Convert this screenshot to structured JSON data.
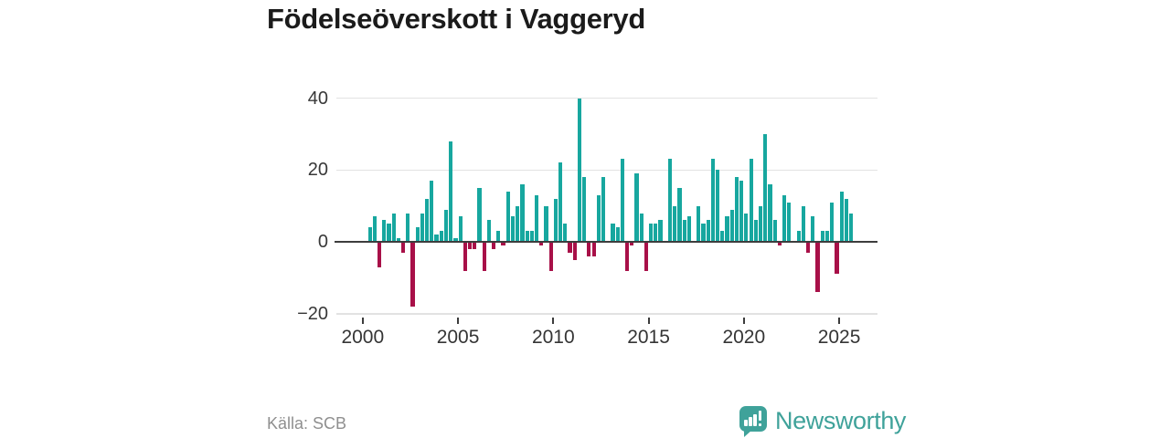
{
  "title": "Födelseöverskott i Vaggeryd",
  "source": "Källa: SCB",
  "brand": {
    "name": "Newsworthy"
  },
  "colors": {
    "positive": "#17a79f",
    "negative": "#a81048",
    "brand": "#3fa29a",
    "grid": "#e2e2e2",
    "zero_line": "#3d3d3d"
  },
  "chart_data": {
    "type": "bar",
    "title": "Födelseöverskott i Vaggeryd",
    "frequency": "quarterly",
    "start": "2000 Q1",
    "end": "2025 Q3",
    "ylim": [
      -20,
      40
    ],
    "grid": true,
    "y_ticks": [
      40,
      20,
      0,
      -20
    ],
    "y_tick_labels": [
      "40",
      "20",
      "0",
      "−20"
    ],
    "x_tick_years": [
      2000,
      2005,
      2010,
      2015,
      2020,
      2025
    ],
    "x_tick_labels": [
      "2000",
      "2005",
      "2010",
      "2015",
      "2020",
      "2025"
    ],
    "series": [
      {
        "name": "Födelseöverskott",
        "values": [
          0,
          4,
          7,
          -7,
          6,
          5,
          8,
          1,
          -3,
          8,
          -18,
          4,
          8,
          12,
          17,
          2,
          3,
          9,
          28,
          1,
          7,
          -8,
          -2,
          -2,
          15,
          -8,
          6,
          -2,
          3,
          -1,
          14,
          7,
          10,
          16,
          3,
          3,
          13,
          -1,
          10,
          -8,
          12,
          22,
          5,
          -3,
          -5,
          40,
          18,
          -4,
          -4,
          13,
          18,
          0,
          5,
          4,
          23,
          -8,
          -1,
          19,
          8,
          -8,
          5,
          5,
          6,
          0,
          23,
          10,
          15,
          6,
          7,
          0,
          10,
          5,
          6,
          23,
          20,
          3,
          7,
          9,
          18,
          17,
          8,
          23,
          6,
          10,
          30,
          16,
          6,
          -1,
          13,
          11,
          0,
          3,
          10,
          -3,
          7,
          -14,
          3,
          3,
          11,
          -9,
          14,
          12,
          8
        ]
      }
    ]
  }
}
